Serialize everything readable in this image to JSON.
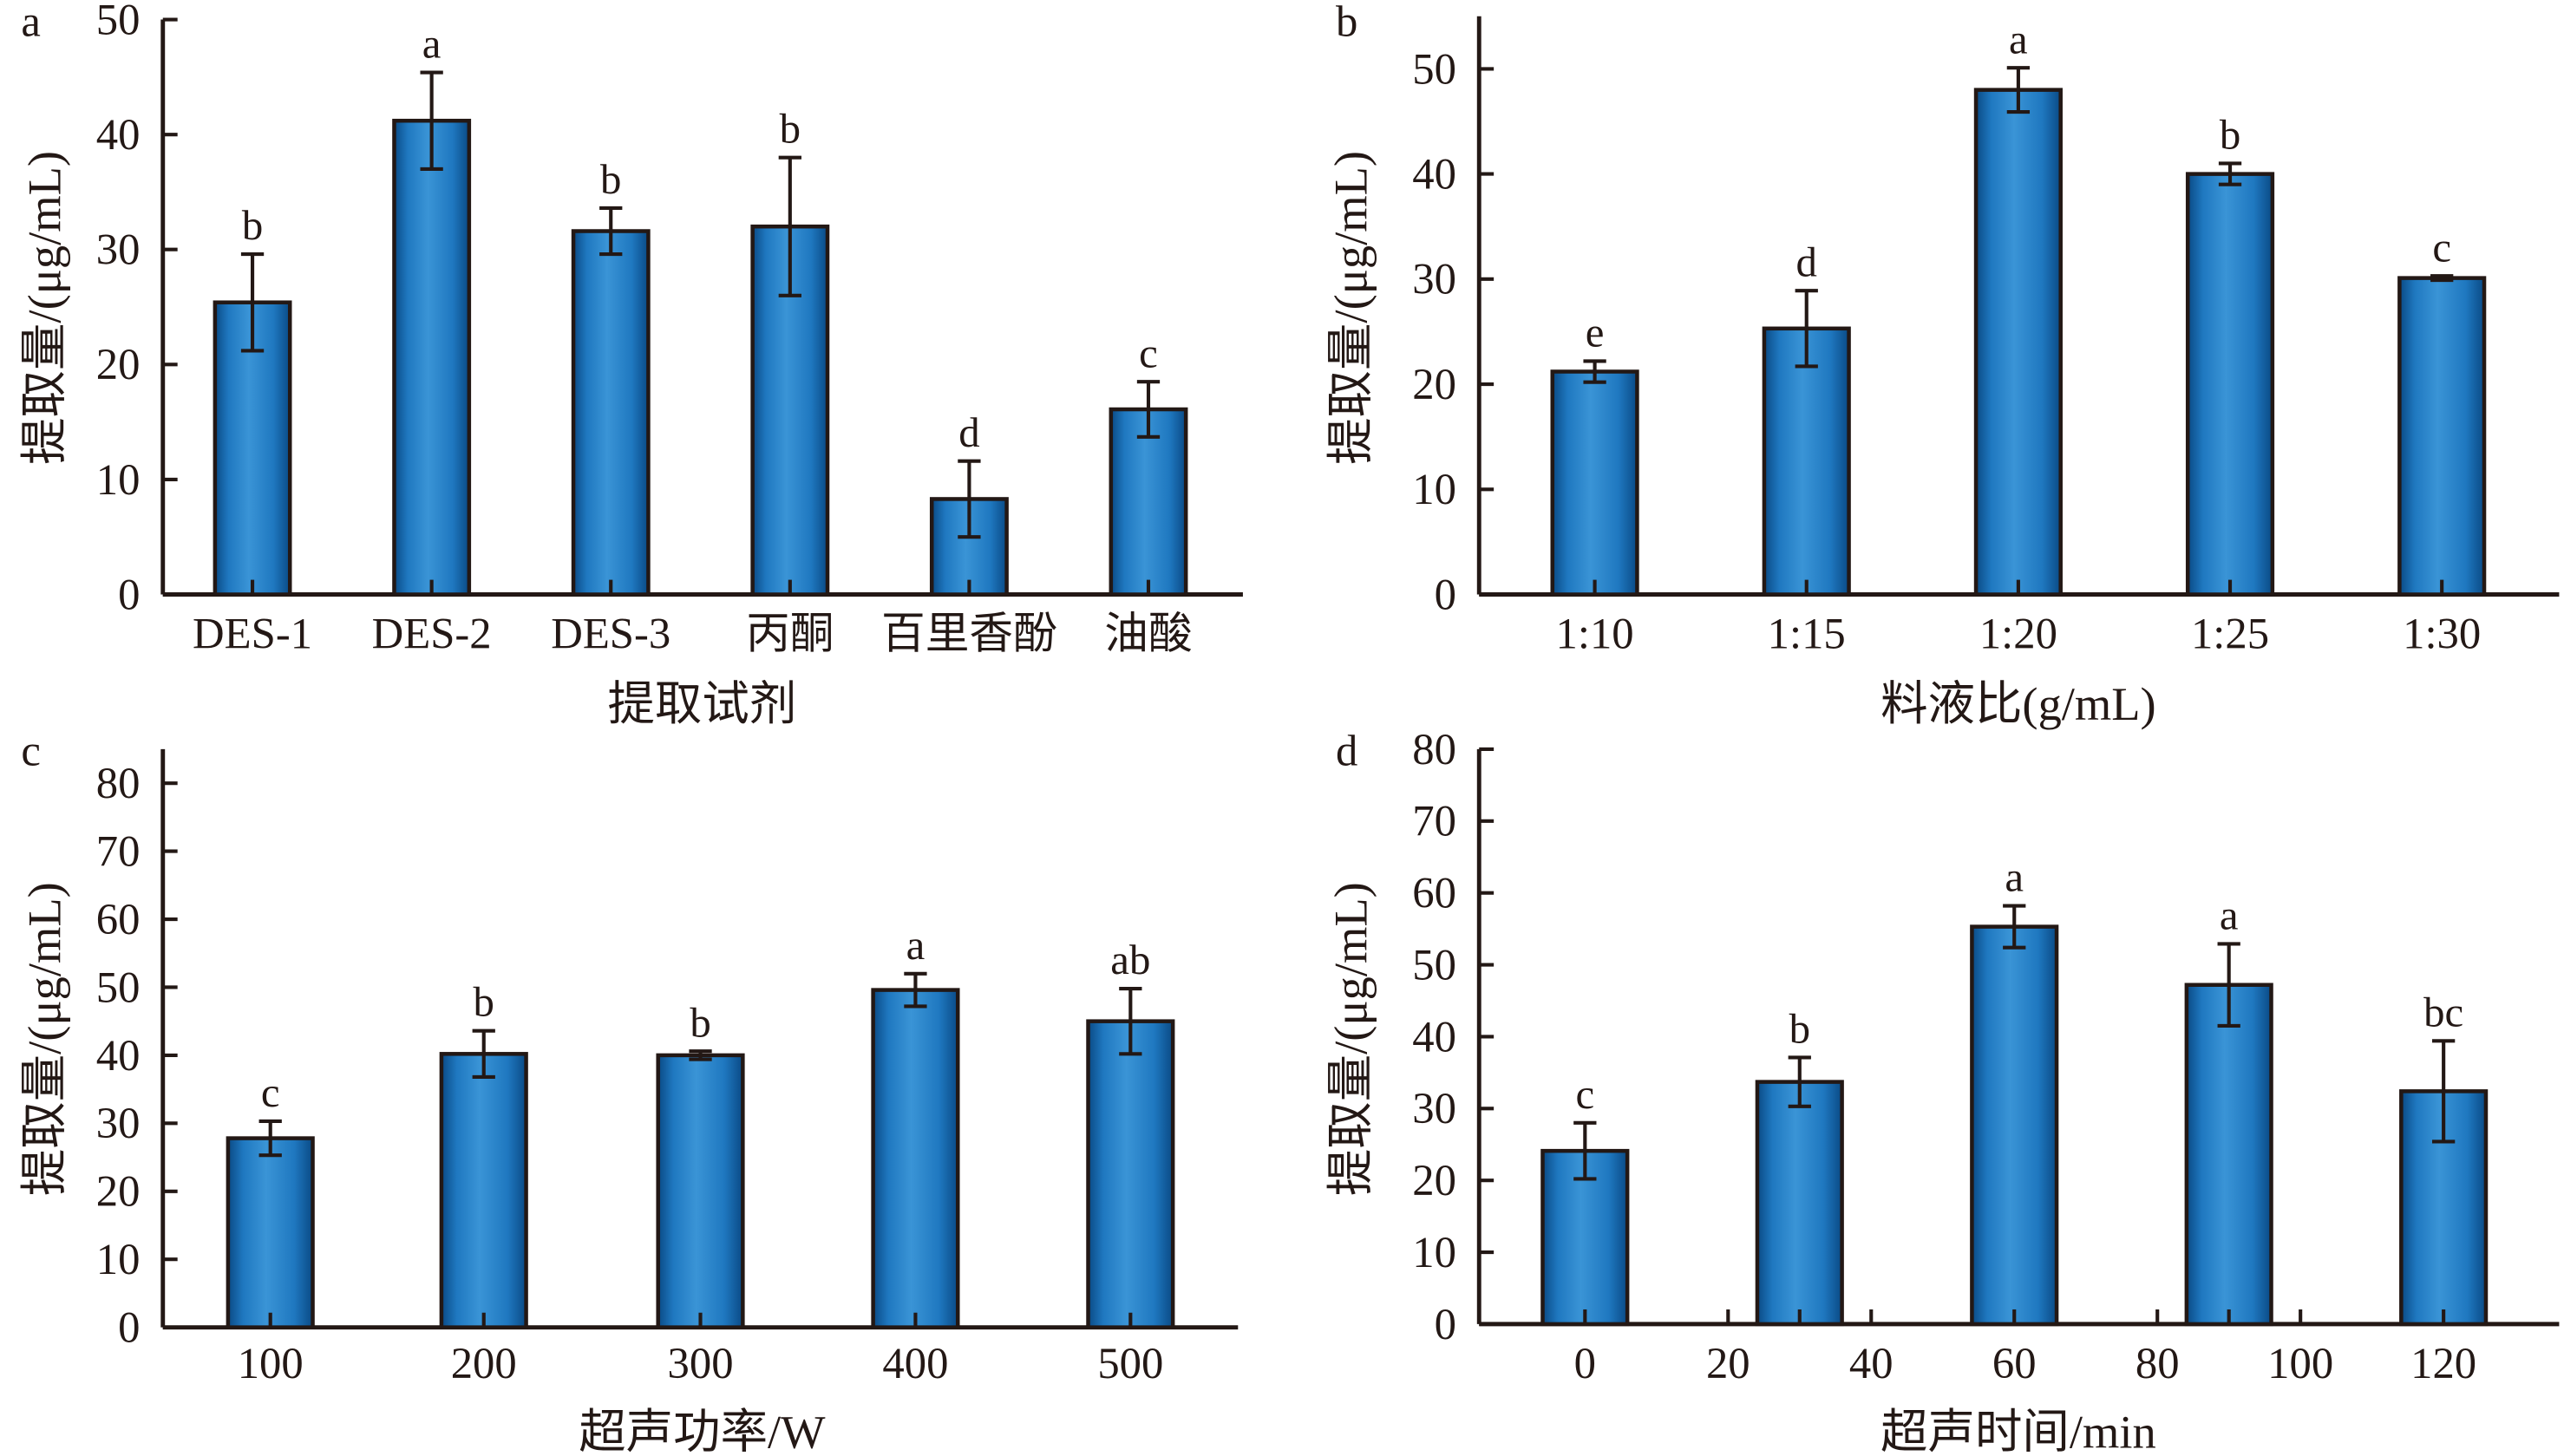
{
  "figure": {
    "colors": {
      "bar_dark": "#0a4a85",
      "bar_mid": "#1f78c0",
      "bar_light": "#3a94d6",
      "ink": "#231815"
    }
  },
  "chart_data": [
    {
      "panel": "a",
      "type": "bar",
      "title": "",
      "xlabel": "提取试剂",
      "ylabel": "提取量/(μg/mL)",
      "ylim": [
        0,
        50
      ],
      "yticks": [
        0,
        10,
        20,
        30,
        40,
        50
      ],
      "grid": false,
      "categories": [
        "DES-1",
        "DES-2",
        "DES-3",
        "丙酮",
        "百里香酚",
        "油酸"
      ],
      "values": [
        25.4,
        41.2,
        31.6,
        32.0,
        8.3,
        16.1
      ],
      "errors": [
        4.2,
        4.2,
        2.0,
        6.0,
        3.3,
        2.4
      ],
      "significance": [
        "b",
        "a",
        "b",
        "b",
        "d",
        "c"
      ]
    },
    {
      "panel": "b",
      "type": "bar",
      "title": "",
      "xlabel": "料液比(g/mL)",
      "ylabel": "提取量/(μg/mL)",
      "ylim": [
        0,
        55
      ],
      "yticks": [
        0,
        10,
        20,
        30,
        40,
        50
      ],
      "grid": false,
      "categories": [
        "1:10",
        "1:15",
        "1:20",
        "1:25",
        "1:30"
      ],
      "values": [
        21.2,
        25.3,
        48.0,
        40.0,
        30.1
      ],
      "errors": [
        1.0,
        3.6,
        2.1,
        1.0,
        0.2
      ],
      "significance": [
        "e",
        "d",
        "a",
        "b",
        "c"
      ]
    },
    {
      "panel": "c",
      "type": "bar",
      "title": "",
      "xlabel": "超声功率/W",
      "ylabel": "提取量/(μg/mL)",
      "ylim": [
        0,
        85
      ],
      "yticks": [
        0,
        10,
        20,
        30,
        40,
        50,
        60,
        70,
        80
      ],
      "grid": false,
      "categories": [
        "100",
        "200",
        "300",
        "400",
        "500"
      ],
      "values": [
        27.8,
        40.2,
        40.0,
        49.6,
        45.0
      ],
      "errors": [
        2.5,
        3.4,
        0.6,
        2.4,
        4.8
      ],
      "significance": [
        "c",
        "b",
        "b",
        "a",
        "ab"
      ]
    },
    {
      "panel": "d",
      "type": "bar",
      "title": "",
      "xlabel": "超声时间/min",
      "ylabel": "提取量/(μg/mL)",
      "ylim": [
        0,
        80
      ],
      "yticks": [
        0,
        10,
        20,
        30,
        40,
        50,
        60,
        70,
        80
      ],
      "xlim": [
        -10,
        133
      ],
      "xticks": [
        0,
        20,
        40,
        60,
        80,
        100,
        120
      ],
      "grid": false,
      "x": [
        0,
        30,
        60,
        90,
        120
      ],
      "values": [
        24.1,
        33.7,
        55.3,
        47.2,
        32.4
      ],
      "errors": [
        3.9,
        3.4,
        2.9,
        5.7,
        7.0
      ],
      "significance": [
        "c",
        "b",
        "a",
        "a",
        "bc"
      ]
    }
  ]
}
